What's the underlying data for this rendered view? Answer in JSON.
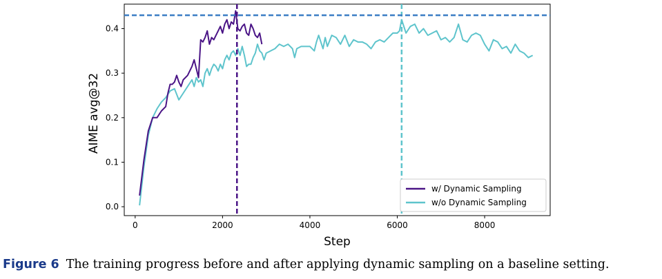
{
  "chart_data": {
    "type": "line",
    "xlabel": "Step",
    "ylabel": "AIME avg@32",
    "xlim": [
      -250,
      9500
    ],
    "ylim": [
      -0.02,
      0.455
    ],
    "xticks": [
      0,
      2000,
      4000,
      6000,
      8000
    ],
    "xtick_labels": [
      "0",
      "2000",
      "4000",
      "6000",
      "8000"
    ],
    "yticks": [
      0.0,
      0.1,
      0.2,
      0.3,
      0.4
    ],
    "ytick_labels": [
      "0.0",
      "0.1",
      "0.2",
      "0.3",
      "0.4"
    ],
    "grid": false,
    "legend": {
      "position": "lower-right",
      "entries": [
        "w/ Dynamic Sampling",
        "w/o Dynamic Sampling"
      ]
    },
    "series": [
      {
        "name": "w/ Dynamic Sampling",
        "color": "#4a1486",
        "x": [
          100,
          200,
          300,
          400,
          500,
          600,
          700,
          750,
          800,
          850,
          900,
          950,
          1000,
          1050,
          1100,
          1200,
          1300,
          1350,
          1400,
          1450,
          1500,
          1550,
          1600,
          1650,
          1700,
          1750,
          1800,
          1850,
          1900,
          1950,
          2000,
          2050,
          2100,
          2150,
          2200,
          2250,
          2300,
          2350,
          2400,
          2450,
          2500,
          2550,
          2600,
          2650,
          2700,
          2750,
          2800,
          2850,
          2900
        ],
        "y": [
          0.025,
          0.105,
          0.17,
          0.2,
          0.2,
          0.215,
          0.225,
          0.255,
          0.275,
          0.275,
          0.28,
          0.295,
          0.28,
          0.27,
          0.285,
          0.295,
          0.315,
          0.33,
          0.31,
          0.29,
          0.375,
          0.37,
          0.38,
          0.395,
          0.365,
          0.38,
          0.375,
          0.385,
          0.395,
          0.405,
          0.39,
          0.41,
          0.42,
          0.4,
          0.415,
          0.41,
          0.44,
          0.4,
          0.395,
          0.405,
          0.41,
          0.39,
          0.385,
          0.41,
          0.4,
          0.385,
          0.38,
          0.39,
          0.365
        ]
      },
      {
        "name": "w/o Dynamic Sampling",
        "color": "#5ec4cc",
        "x": [
          100,
          200,
          300,
          400,
          500,
          600,
          700,
          800,
          900,
          1000,
          1100,
          1200,
          1300,
          1350,
          1400,
          1450,
          1500,
          1550,
          1600,
          1650,
          1700,
          1750,
          1800,
          1850,
          1900,
          1950,
          2000,
          2050,
          2100,
          2150,
          2200,
          2250,
          2300,
          2350,
          2400,
          2450,
          2500,
          2550,
          2600,
          2650,
          2700,
          2750,
          2800,
          2850,
          2900,
          2950,
          3000,
          3100,
          3200,
          3300,
          3400,
          3500,
          3600,
          3650,
          3700,
          3800,
          3900,
          4000,
          4100,
          4150,
          4200,
          4300,
          4350,
          4400,
          4500,
          4600,
          4700,
          4800,
          4900,
          5000,
          5100,
          5200,
          5300,
          5400,
          5500,
          5600,
          5700,
          5800,
          5900,
          6000,
          6050,
          6100,
          6150,
          6200,
          6300,
          6400,
          6500,
          6600,
          6700,
          6800,
          6900,
          7000,
          7100,
          7200,
          7300,
          7400,
          7500,
          7600,
          7700,
          7800,
          7900,
          8000,
          8100,
          8200,
          8300,
          8400,
          8500,
          8600,
          8700,
          8800,
          8900,
          9000,
          9100
        ],
        "y": [
          0.003,
          0.09,
          0.16,
          0.2,
          0.22,
          0.235,
          0.245,
          0.26,
          0.265,
          0.24,
          0.255,
          0.27,
          0.285,
          0.27,
          0.29,
          0.28,
          0.285,
          0.27,
          0.3,
          0.31,
          0.295,
          0.31,
          0.32,
          0.315,
          0.305,
          0.32,
          0.31,
          0.33,
          0.34,
          0.33,
          0.345,
          0.35,
          0.34,
          0.355,
          0.34,
          0.36,
          0.34,
          0.315,
          0.32,
          0.32,
          0.335,
          0.345,
          0.365,
          0.35,
          0.345,
          0.33,
          0.345,
          0.35,
          0.355,
          0.365,
          0.36,
          0.365,
          0.355,
          0.335,
          0.355,
          0.36,
          0.36,
          0.36,
          0.35,
          0.37,
          0.385,
          0.355,
          0.38,
          0.36,
          0.385,
          0.38,
          0.365,
          0.385,
          0.36,
          0.375,
          0.37,
          0.37,
          0.365,
          0.355,
          0.37,
          0.375,
          0.37,
          0.38,
          0.39,
          0.39,
          0.395,
          0.42,
          0.405,
          0.39,
          0.405,
          0.41,
          0.39,
          0.4,
          0.385,
          0.39,
          0.395,
          0.375,
          0.38,
          0.37,
          0.38,
          0.41,
          0.375,
          0.37,
          0.385,
          0.39,
          0.385,
          0.365,
          0.35,
          0.375,
          0.37,
          0.355,
          0.36,
          0.345,
          0.365,
          0.35,
          0.345,
          0.335,
          0.34
        ]
      }
    ],
    "reference_lines": [
      {
        "orientation": "vertical",
        "x": 2330,
        "color": "#4a1486",
        "style": "dashed"
      },
      {
        "orientation": "vertical",
        "x": 6100,
        "color": "#5ec4cc",
        "style": "dashed"
      },
      {
        "orientation": "horizontal",
        "y": 0.43,
        "color": "#3a7cc4",
        "style": "dashed"
      }
    ]
  },
  "caption": {
    "label": "Figure 6",
    "text": "The training progress before and after applying dynamic sampling on a baseline setting."
  }
}
